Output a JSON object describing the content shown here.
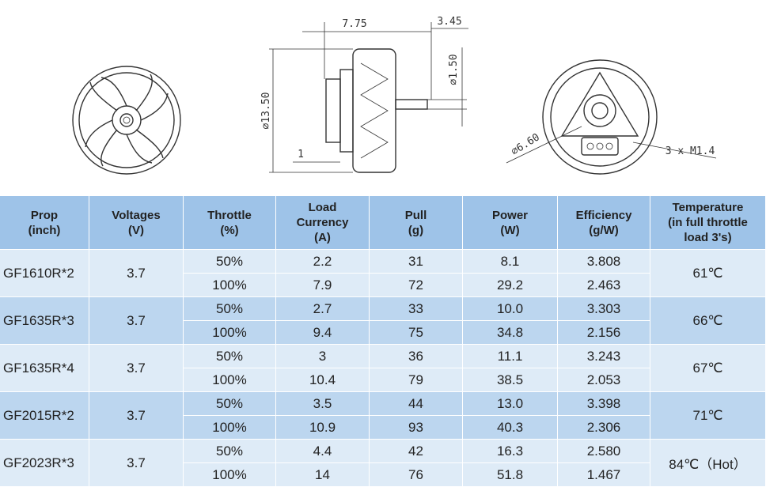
{
  "drawing": {
    "labels": {
      "length": "7.75",
      "shaft_length": "3.45",
      "shaft_diameter": "⌀1.50",
      "diameter": "⌀13.50",
      "base": "1",
      "bolt_circle": "⌀6.60",
      "screws": "3 x M1.4"
    }
  },
  "table": {
    "header": [
      [
        "Prop",
        "(inch)"
      ],
      [
        "Voltages",
        "(V)"
      ],
      [
        "Throttle",
        "(%)"
      ],
      [
        "Load",
        "Currency",
        "(A)"
      ],
      [
        "Pull",
        "(g)"
      ],
      [
        "Power",
        "(W)"
      ],
      [
        "Efficiency",
        "(g/W)"
      ],
      [
        "Temperature",
        "(in full throttle",
        "load 3's)"
      ]
    ],
    "groups": [
      {
        "prop": "GF1610R*2",
        "voltage": "3.7",
        "temperature": "61℃",
        "rows": [
          [
            "50%",
            "2.2",
            "31",
            "8.1",
            "3.808"
          ],
          [
            "100%",
            "7.9",
            "72",
            "29.2",
            "2.463"
          ]
        ]
      },
      {
        "prop": "GF1635R*3",
        "voltage": "3.7",
        "temperature": "66℃",
        "rows": [
          [
            "50%",
            "2.7",
            "33",
            "10.0",
            "3.303"
          ],
          [
            "100%",
            "9.4",
            "75",
            "34.8",
            "2.156"
          ]
        ]
      },
      {
        "prop": "GF1635R*4",
        "voltage": "3.7",
        "temperature": "67℃",
        "rows": [
          [
            "50%",
            "3",
            "36",
            "11.1",
            "3.243"
          ],
          [
            "100%",
            "10.4",
            "79",
            "38.5",
            "2.053"
          ]
        ]
      },
      {
        "prop": "GF2015R*2",
        "voltage": "3.7",
        "temperature": "71℃",
        "rows": [
          [
            "50%",
            "3.5",
            "44",
            "13.0",
            "3.398"
          ],
          [
            "100%",
            "10.9",
            "93",
            "40.3",
            "2.306"
          ]
        ]
      },
      {
        "prop": "GF2023R*3",
        "voltage": "3.7",
        "temperature": "84℃（Hot）",
        "rows": [
          [
            "50%",
            "4.4",
            "42",
            "16.3",
            "2.580"
          ],
          [
            "100%",
            "14",
            "76",
            "51.8",
            "1.467"
          ]
        ]
      }
    ]
  }
}
